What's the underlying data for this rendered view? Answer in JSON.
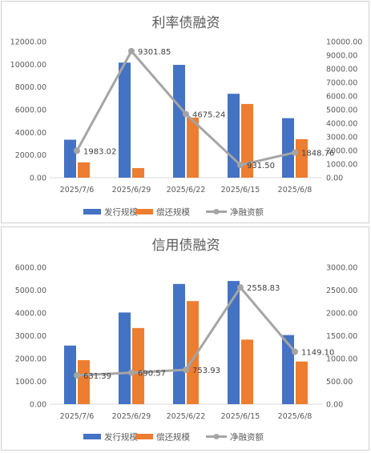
{
  "chart_data": [
    {
      "type": "bar",
      "title": "利率债融资",
      "categories": [
        "2025/7/6",
        "2025/6/29",
        "2025/6/22",
        "2025/6/15",
        "2025/6/8"
      ],
      "series": [
        {
          "name": "发行规模",
          "type": "bar",
          "axis": "left",
          "color": "#4472C4",
          "values": [
            3350,
            10150,
            9950,
            7400,
            5250
          ]
        },
        {
          "name": "偿还规模",
          "type": "bar",
          "axis": "left",
          "color": "#ED7D31",
          "values": [
            1350,
            850,
            5300,
            6500,
            3400
          ]
        },
        {
          "name": "净融资额",
          "type": "line",
          "axis": "right",
          "color": "#A5A5A5",
          "values": [
            1983.02,
            9301.85,
            4675.24,
            931.5,
            1848.76
          ],
          "labels": [
            "1983.02",
            "9301.85",
            "4675.24",
            "931.50",
            "1848.76"
          ]
        }
      ],
      "yleft": {
        "min": 0,
        "max": 12000,
        "ticks": [
          "0.00",
          "2000.00",
          "4000.00",
          "6000.00",
          "8000.00",
          "10000.00",
          "12000.00"
        ]
      },
      "yright": {
        "min": 0,
        "max": 10000,
        "ticks": [
          "0.00",
          "1000.00",
          "2000.00",
          "3000.00",
          "4000.00",
          "5000.00",
          "6000.00",
          "7000.00",
          "8000.00",
          "9000.00",
          "10000.00"
        ]
      },
      "legend_position": "bottom",
      "grid": false
    },
    {
      "type": "bar",
      "title": "信用债融资",
      "categories": [
        "2025/7/6",
        "2025/6/29",
        "2025/6/22",
        "2025/6/15",
        "2025/6/8"
      ],
      "series": [
        {
          "name": "发行规模",
          "type": "bar",
          "axis": "left",
          "color": "#4472C4",
          "values": [
            2570,
            4020,
            5270,
            5400,
            3030
          ]
        },
        {
          "name": "偿还规模",
          "type": "bar",
          "axis": "left",
          "color": "#ED7D31",
          "values": [
            1930,
            3340,
            4520,
            2830,
            1870
          ]
        },
        {
          "name": "净融资额",
          "type": "line",
          "axis": "right",
          "color": "#A5A5A5",
          "values": [
            631.39,
            690.57,
            753.93,
            2558.83,
            1149.1
          ],
          "labels": [
            "631.39",
            "690.57",
            "753.93",
            "2558.83",
            "1149.10"
          ]
        }
      ],
      "yleft": {
        "min": 0,
        "max": 6000,
        "ticks": [
          "0.00",
          "1000.00",
          "2000.00",
          "3000.00",
          "4000.00",
          "5000.00",
          "6000.00"
        ]
      },
      "yright": {
        "min": 0,
        "max": 3000,
        "ticks": [
          "0.00",
          "500.00",
          "1000.00",
          "1500.00",
          "2000.00",
          "2500.00",
          "3000.00"
        ]
      },
      "legend_position": "bottom",
      "grid": false
    }
  ]
}
